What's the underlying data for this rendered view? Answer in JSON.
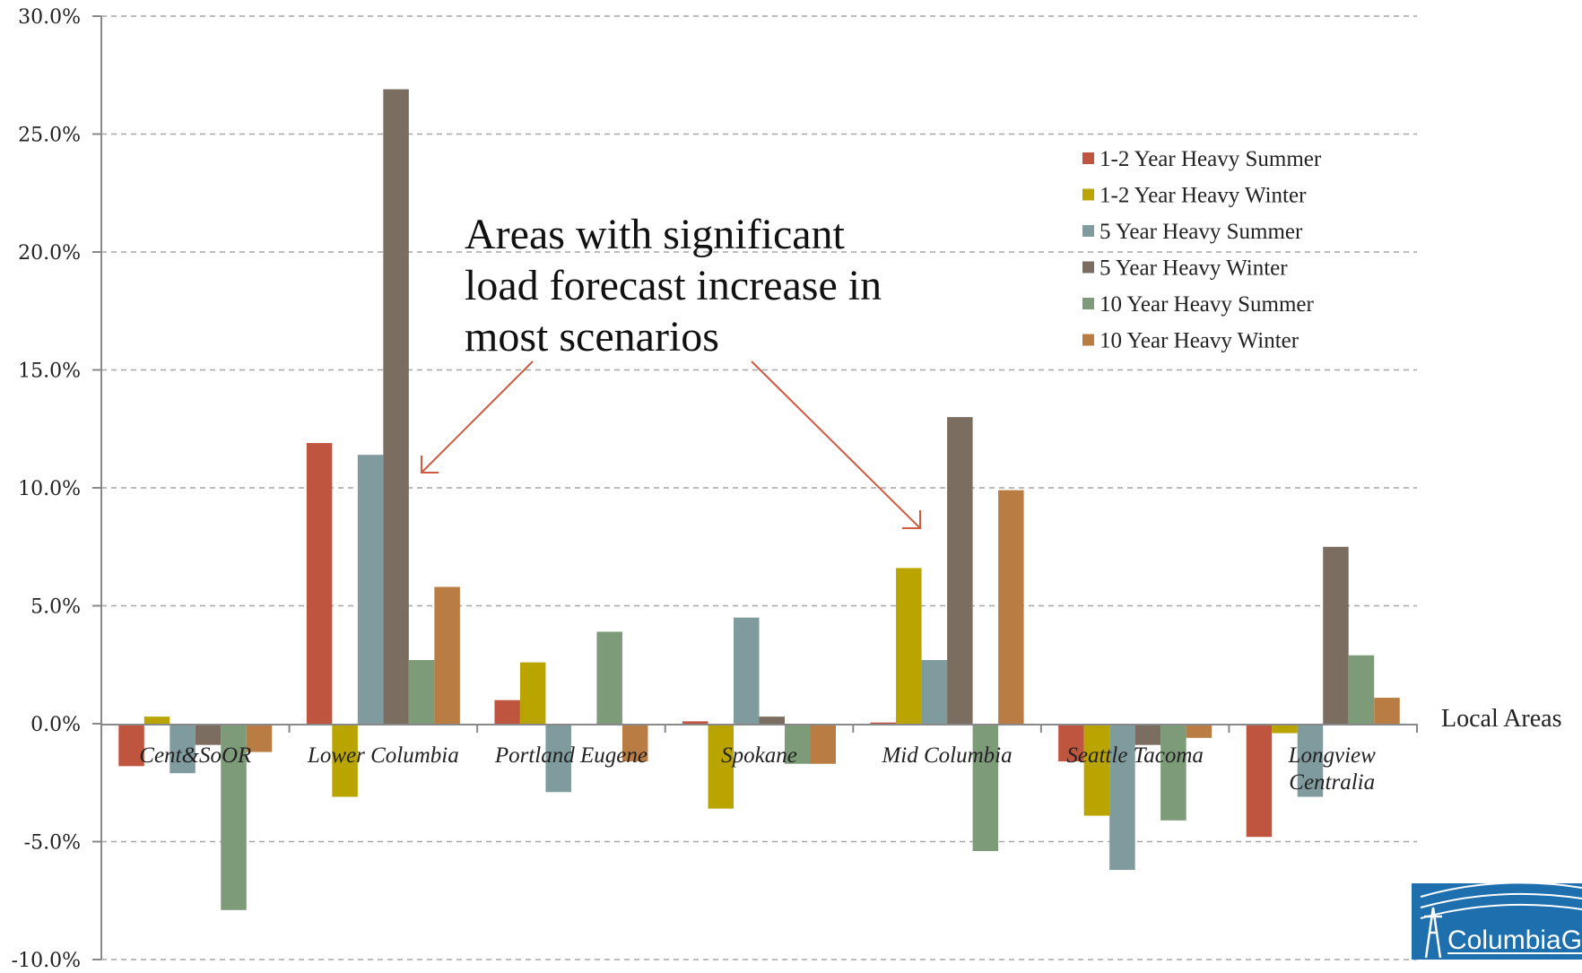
{
  "chart_data": {
    "type": "bar",
    "categories": [
      "Cent&SoOR",
      "Lower Columbia",
      "Portland Eugene",
      "Spokane",
      "Mid Columbia",
      "Seattle Tacoma",
      "Longview Centralia"
    ],
    "xlabel": "Local Areas",
    "ylabel": "",
    "ylim": [
      -10,
      30
    ],
    "yticks": [
      "-10.0%",
      "-5.0%",
      "0.0%",
      "5.0%",
      "10.0%",
      "15.0%",
      "20.0%",
      "25.0%",
      "30.0%"
    ],
    "ytick_values": [
      -10,
      -5,
      0,
      5,
      10,
      15,
      20,
      25,
      30
    ],
    "grid": true,
    "legend_position": "top-right",
    "series": [
      {
        "name": "1-2 Year Heavy Summer",
        "color": "#c0553f",
        "values": [
          -1.8,
          11.9,
          1.0,
          0.1,
          0.05,
          -1.6,
          -4.8
        ]
      },
      {
        "name": "1-2 Year Heavy Winter",
        "color": "#b9a400",
        "values": [
          0.3,
          -3.1,
          2.6,
          -3.6,
          6.6,
          -3.9,
          -0.4
        ]
      },
      {
        "name": "5 Year Heavy Summer",
        "color": "#7f9b9e",
        "values": [
          -2.1,
          11.4,
          -2.9,
          4.5,
          2.7,
          -6.2,
          -3.1
        ]
      },
      {
        "name": "5 Year Heavy Winter",
        "color": "#7b6d60",
        "values": [
          -0.9,
          26.9,
          0.0,
          0.3,
          13.0,
          -0.9,
          7.5
        ]
      },
      {
        "name": "10 Year Heavy Summer",
        "color": "#7d9b78",
        "values": [
          -7.9,
          2.7,
          3.9,
          -1.7,
          -5.4,
          -4.1,
          2.9
        ]
      },
      {
        "name": "10 Year Heavy Winter",
        "color": "#b97c42",
        "values": [
          -1.2,
          5.8,
          -1.6,
          -1.7,
          9.9,
          -0.6,
          1.1
        ]
      }
    ],
    "annotations": [
      {
        "lines": [
          "Areas with significant",
          "load forecast increase in",
          "most scenarios"
        ],
        "color": "#111111",
        "arrow_color": "#d05a40"
      }
    ]
  },
  "logo": {
    "text": "ColumbiaG",
    "color": "#1e6fae"
  }
}
